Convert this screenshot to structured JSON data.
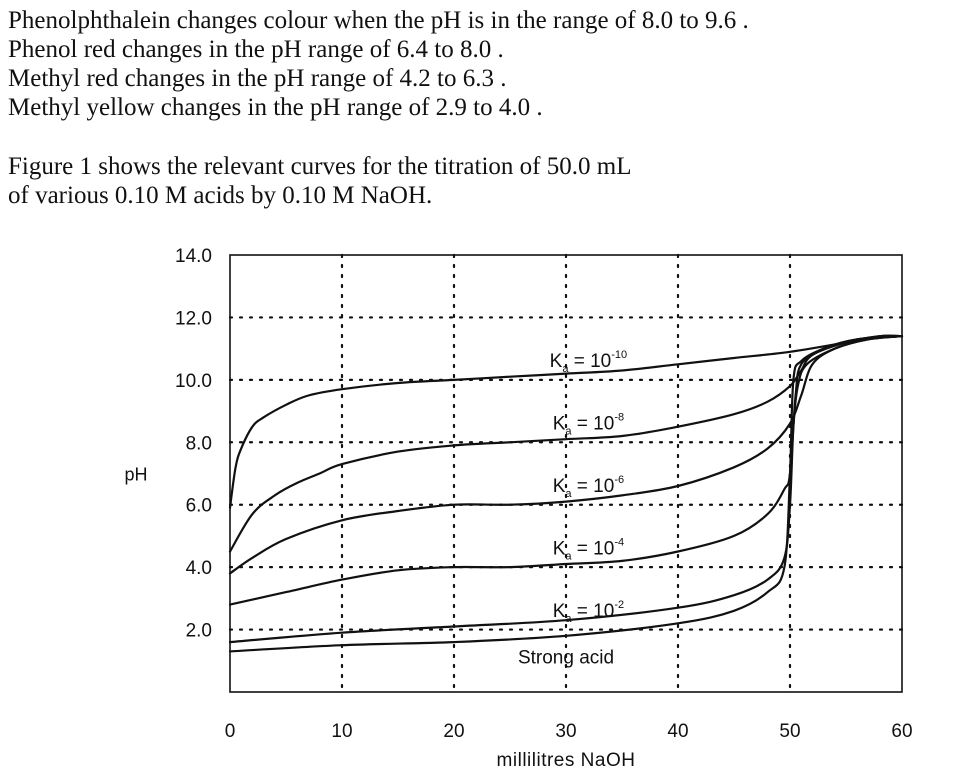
{
  "paragraph1": {
    "lines": [
      "Phenolphthalein changes colour when the pH is in the range of 8.0 to 9.6 .",
      "Phenol red changes in the pH range of 6.4 to 8.0 .",
      "Methyl red changes in the pH range of 4.2 to 6.3 .",
      "Methyl yellow changes in the pH range of 2.9 to 4.0 ."
    ]
  },
  "paragraph2": {
    "lines": [
      "Figure 1 shows the relevant curves for the titration of 50.0 mL",
      "of various 0.10 M acids by 0.10 M NaOH."
    ]
  },
  "chart_data": {
    "type": "line",
    "title": "",
    "xlabel": "millilitres NaOH",
    "ylabel": "pH",
    "xlim": [
      0,
      60
    ],
    "ylim": [
      0,
      14
    ],
    "x_ticks": [
      "0",
      "10",
      "20",
      "30",
      "40",
      "50",
      "60"
    ],
    "y_ticks": [
      "2.0",
      "4.0",
      "6.0",
      "8.0",
      "10.0",
      "12.0",
      "14.0"
    ],
    "grid": "dotted",
    "line_color": "#111111",
    "series": [
      {
        "name": "Ka = 10-10",
        "label": {
          "base": "K",
          "sub": "a",
          "eq": " = 10",
          "exp": "-10"
        },
        "points": [
          [
            0,
            5.9
          ],
          [
            0.5,
            7.2
          ],
          [
            1,
            7.8
          ],
          [
            2,
            8.5
          ],
          [
            3,
            8.8
          ],
          [
            5,
            9.2
          ],
          [
            7,
            9.5
          ],
          [
            10,
            9.7
          ],
          [
            15,
            9.9
          ],
          [
            20,
            10.0
          ],
          [
            25,
            10.1
          ],
          [
            30,
            10.2
          ],
          [
            35,
            10.3
          ],
          [
            40,
            10.5
          ],
          [
            45,
            10.7
          ],
          [
            50,
            10.9
          ],
          [
            55,
            11.2
          ],
          [
            58,
            11.4
          ],
          [
            60,
            11.4
          ]
        ]
      },
      {
        "name": "Ka = 10-8",
        "label": {
          "base": "K",
          "sub": "a",
          "eq": " = 10",
          "exp": "-8"
        },
        "points": [
          [
            0,
            4.5
          ],
          [
            2,
            5.7
          ],
          [
            4,
            6.3
          ],
          [
            6,
            6.7
          ],
          [
            8,
            7.0
          ],
          [
            10,
            7.3
          ],
          [
            15,
            7.7
          ],
          [
            20,
            7.9
          ],
          [
            25,
            8.0
          ],
          [
            30,
            8.1
          ],
          [
            35,
            8.2
          ],
          [
            40,
            8.5
          ],
          [
            45,
            8.9
          ],
          [
            48,
            9.3
          ],
          [
            50,
            9.8
          ],
          [
            51,
            10.3
          ],
          [
            52,
            10.8
          ],
          [
            55,
            11.2
          ],
          [
            58,
            11.4
          ],
          [
            60,
            11.4
          ]
        ]
      },
      {
        "name": "Ka = 10-6",
        "label": {
          "base": "K",
          "sub": "a",
          "eq": " = 10",
          "exp": "-6"
        },
        "points": [
          [
            0,
            3.8
          ],
          [
            2,
            4.3
          ],
          [
            5,
            4.9
          ],
          [
            10,
            5.5
          ],
          [
            15,
            5.8
          ],
          [
            20,
            6.0
          ],
          [
            25,
            6.0
          ],
          [
            30,
            6.1
          ],
          [
            35,
            6.3
          ],
          [
            40,
            6.6
          ],
          [
            45,
            7.2
          ],
          [
            48,
            7.8
          ],
          [
            50,
            8.6
          ],
          [
            51,
            9.5
          ],
          [
            52,
            10.5
          ],
          [
            54,
            11.0
          ],
          [
            57,
            11.3
          ],
          [
            60,
            11.4
          ]
        ]
      },
      {
        "name": "Ka = 10-4",
        "label": {
          "base": "K",
          "sub": "a",
          "eq": " = 10",
          "exp": "-4"
        },
        "points": [
          [
            0,
            2.8
          ],
          [
            5,
            3.2
          ],
          [
            10,
            3.6
          ],
          [
            15,
            3.9
          ],
          [
            20,
            4.0
          ],
          [
            25,
            4.0
          ],
          [
            30,
            4.1
          ],
          [
            35,
            4.2
          ],
          [
            40,
            4.5
          ],
          [
            45,
            5.0
          ],
          [
            48,
            5.7
          ],
          [
            49.5,
            6.5
          ],
          [
            50,
            7.0
          ],
          [
            50.5,
            9.5
          ],
          [
            51,
            10.5
          ],
          [
            53,
            11.0
          ],
          [
            56,
            11.3
          ],
          [
            60,
            11.4
          ]
        ]
      },
      {
        "name": "Ka = 10-2",
        "label": {
          "base": "K",
          "sub": "a",
          "eq": " = 10",
          "exp": "-2"
        },
        "points": [
          [
            0,
            1.6
          ],
          [
            10,
            1.9
          ],
          [
            20,
            2.1
          ],
          [
            30,
            2.3
          ],
          [
            40,
            2.7
          ],
          [
            45,
            3.1
          ],
          [
            48,
            3.6
          ],
          [
            49.5,
            4.3
          ],
          [
            50,
            6.0
          ],
          [
            50.3,
            8.5
          ],
          [
            50.7,
            9.8
          ],
          [
            51.5,
            10.5
          ],
          [
            54,
            11.0
          ],
          [
            57,
            11.3
          ],
          [
            60,
            11.4
          ]
        ]
      },
      {
        "name": "Strong acid",
        "label": {
          "text": "Strong acid"
        },
        "points": [
          [
            0,
            1.3
          ],
          [
            10,
            1.5
          ],
          [
            20,
            1.6
          ],
          [
            30,
            1.8
          ],
          [
            40,
            2.2
          ],
          [
            45,
            2.6
          ],
          [
            48,
            3.2
          ],
          [
            49.5,
            4.0
          ],
          [
            50,
            7.0
          ],
          [
            50.3,
            10.0
          ],
          [
            51,
            10.6
          ],
          [
            53,
            11.0
          ],
          [
            56,
            11.3
          ],
          [
            60,
            11.4
          ]
        ]
      }
    ]
  }
}
